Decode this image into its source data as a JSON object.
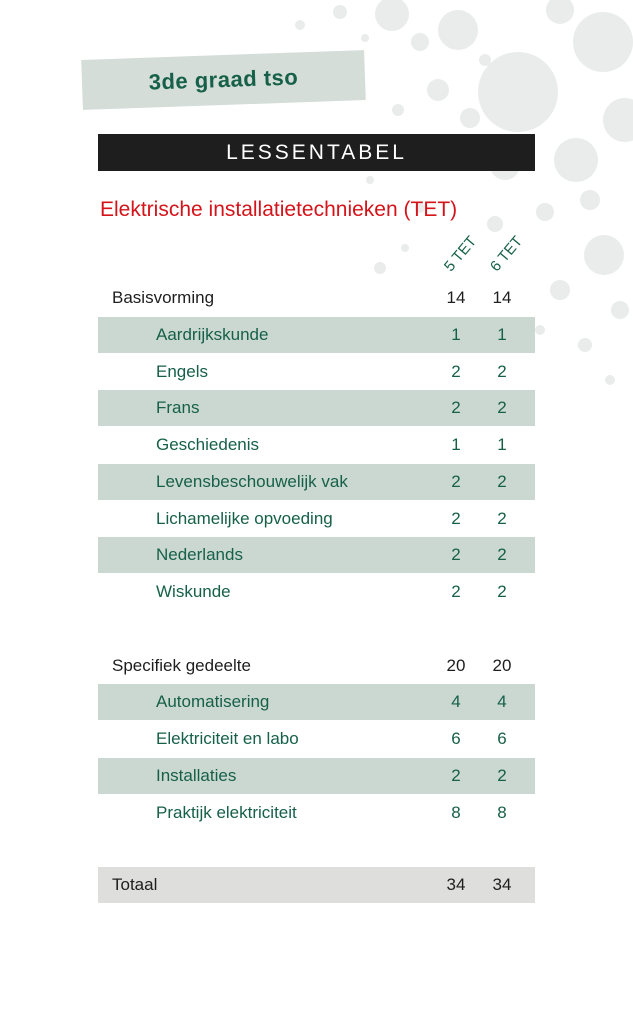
{
  "header": {
    "grade": "3de graad tso",
    "title": "LESSENTABEL",
    "program": "Elektrische installatietechnieken (TET)"
  },
  "columns": [
    "5 TET",
    "6 TET"
  ],
  "sections": [
    {
      "name": "Basisvorming",
      "v5": "14",
      "v6": "14",
      "subjects": [
        {
          "name": "Aardrijkskunde",
          "v5": "1",
          "v6": "1"
        },
        {
          "name": "Engels",
          "v5": "2",
          "v6": "2"
        },
        {
          "name": "Frans",
          "v5": "2",
          "v6": "2"
        },
        {
          "name": "Geschiedenis",
          "v5": "1",
          "v6": "1"
        },
        {
          "name": "Levensbeschouwelijk vak",
          "v5": "2",
          "v6": "2"
        },
        {
          "name": "Lichamelijke opvoeding",
          "v5": "2",
          "v6": "2"
        },
        {
          "name": "Nederlands",
          "v5": "2",
          "v6": "2"
        },
        {
          "name": "Wiskunde",
          "v5": "2",
          "v6": "2"
        }
      ]
    },
    {
      "name": "Specifiek gedeelte",
      "v5": "20",
      "v6": "20",
      "subjects": [
        {
          "name": "Automatisering",
          "v5": "4",
          "v6": "4"
        },
        {
          "name": "Elektriciteit en labo",
          "v5": "6",
          "v6": "6"
        },
        {
          "name": "Installaties",
          "v5": "2",
          "v6": "2"
        },
        {
          "name": "Praktijk elektriciteit",
          "v5": "8",
          "v6": "8"
        }
      ]
    }
  ],
  "total": {
    "name": "Totaal",
    "v5": "34",
    "v6": "34"
  },
  "colors": {
    "accent_green": "#166049",
    "title_red": "#d4141a",
    "row_shade": "#cbd8d2",
    "bar_dark": "#1e1e1e"
  }
}
